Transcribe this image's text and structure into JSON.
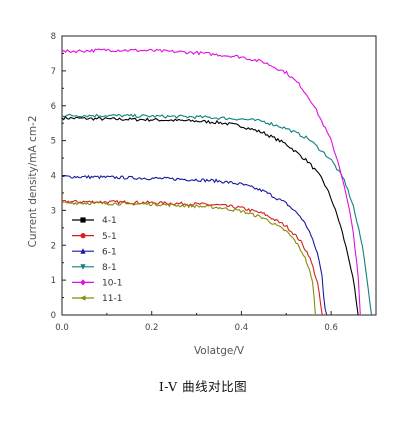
{
  "caption": "I-V 曲线对比图",
  "chart_data": {
    "type": "line",
    "title": "",
    "xlabel": "Volatge/V",
    "ylabel": "Current density/mA cm-2",
    "xlim": [
      0.0,
      0.7
    ],
    "ylim": [
      0,
      8
    ],
    "xticks": [
      "0.0",
      "0.2",
      "0.4",
      "0.6"
    ],
    "yticks": [
      "0",
      "1",
      "2",
      "3",
      "4",
      "5",
      "6",
      "7",
      "8"
    ],
    "grid": false,
    "legend_position": "bottom-left",
    "series": [
      {
        "name": "4-1",
        "color": "#000000",
        "marker": "square",
        "points": [
          [
            0.0,
            5.65
          ],
          [
            0.1,
            5.62
          ],
          [
            0.2,
            5.6
          ],
          [
            0.3,
            5.56
          ],
          [
            0.35,
            5.52
          ],
          [
            0.4,
            5.42
          ],
          [
            0.45,
            5.22
          ],
          [
            0.5,
            4.9
          ],
          [
            0.55,
            4.38
          ],
          [
            0.58,
            3.9
          ],
          [
            0.6,
            3.35
          ],
          [
            0.62,
            2.6
          ],
          [
            0.64,
            1.6
          ],
          [
            0.65,
            0.95
          ],
          [
            0.66,
            0.0
          ]
        ]
      },
      {
        "name": "5-1",
        "color": "#d42020",
        "marker": "circle",
        "points": [
          [
            0.0,
            3.25
          ],
          [
            0.1,
            3.24
          ],
          [
            0.2,
            3.22
          ],
          [
            0.3,
            3.18
          ],
          [
            0.35,
            3.15
          ],
          [
            0.4,
            3.07
          ],
          [
            0.45,
            2.9
          ],
          [
            0.5,
            2.55
          ],
          [
            0.53,
            2.15
          ],
          [
            0.55,
            1.72
          ],
          [
            0.56,
            1.35
          ],
          [
            0.57,
            0.9
          ],
          [
            0.58,
            0.0
          ]
        ]
      },
      {
        "name": "6-1",
        "color": "#1a1aa0",
        "marker": "triangle-up",
        "points": [
          [
            0.0,
            3.97
          ],
          [
            0.1,
            3.95
          ],
          [
            0.2,
            3.92
          ],
          [
            0.3,
            3.88
          ],
          [
            0.35,
            3.84
          ],
          [
            0.4,
            3.75
          ],
          [
            0.45,
            3.55
          ],
          [
            0.5,
            3.2
          ],
          [
            0.53,
            2.85
          ],
          [
            0.55,
            2.45
          ],
          [
            0.57,
            1.75
          ],
          [
            0.58,
            1.1
          ],
          [
            0.585,
            0.3
          ],
          [
            0.59,
            0.0
          ]
        ]
      },
      {
        "name": "8-1",
        "color": "#108080",
        "marker": "triangle-down",
        "points": [
          [
            0.0,
            5.72
          ],
          [
            0.1,
            5.72
          ],
          [
            0.2,
            5.7
          ],
          [
            0.3,
            5.68
          ],
          [
            0.4,
            5.62
          ],
          [
            0.45,
            5.55
          ],
          [
            0.5,
            5.35
          ],
          [
            0.55,
            5.05
          ],
          [
            0.6,
            4.45
          ],
          [
            0.63,
            3.85
          ],
          [
            0.65,
            3.1
          ],
          [
            0.67,
            1.95
          ],
          [
            0.68,
            1.05
          ],
          [
            0.69,
            0.0
          ]
        ]
      },
      {
        "name": "10-1",
        "color": "#e010e0",
        "marker": "diamond",
        "points": [
          [
            0.0,
            7.55
          ],
          [
            0.1,
            7.6
          ],
          [
            0.2,
            7.58
          ],
          [
            0.3,
            7.52
          ],
          [
            0.4,
            7.4
          ],
          [
            0.45,
            7.25
          ],
          [
            0.5,
            6.95
          ],
          [
            0.53,
            6.6
          ],
          [
            0.56,
            6.05
          ],
          [
            0.6,
            5.0
          ],
          [
            0.62,
            4.2
          ],
          [
            0.64,
            3.05
          ],
          [
            0.65,
            2.3
          ],
          [
            0.66,
            1.2
          ],
          [
            0.665,
            0.0
          ]
        ]
      },
      {
        "name": "11-1",
        "color": "#8a8a10",
        "marker": "triangle-left",
        "points": [
          [
            0.0,
            3.22
          ],
          [
            0.1,
            3.2
          ],
          [
            0.2,
            3.18
          ],
          [
            0.3,
            3.12
          ],
          [
            0.35,
            3.08
          ],
          [
            0.4,
            2.98
          ],
          [
            0.45,
            2.78
          ],
          [
            0.5,
            2.4
          ],
          [
            0.52,
            2.12
          ],
          [
            0.54,
            1.7
          ],
          [
            0.55,
            1.35
          ],
          [
            0.56,
            0.85
          ],
          [
            0.565,
            0.0
          ]
        ]
      }
    ]
  }
}
